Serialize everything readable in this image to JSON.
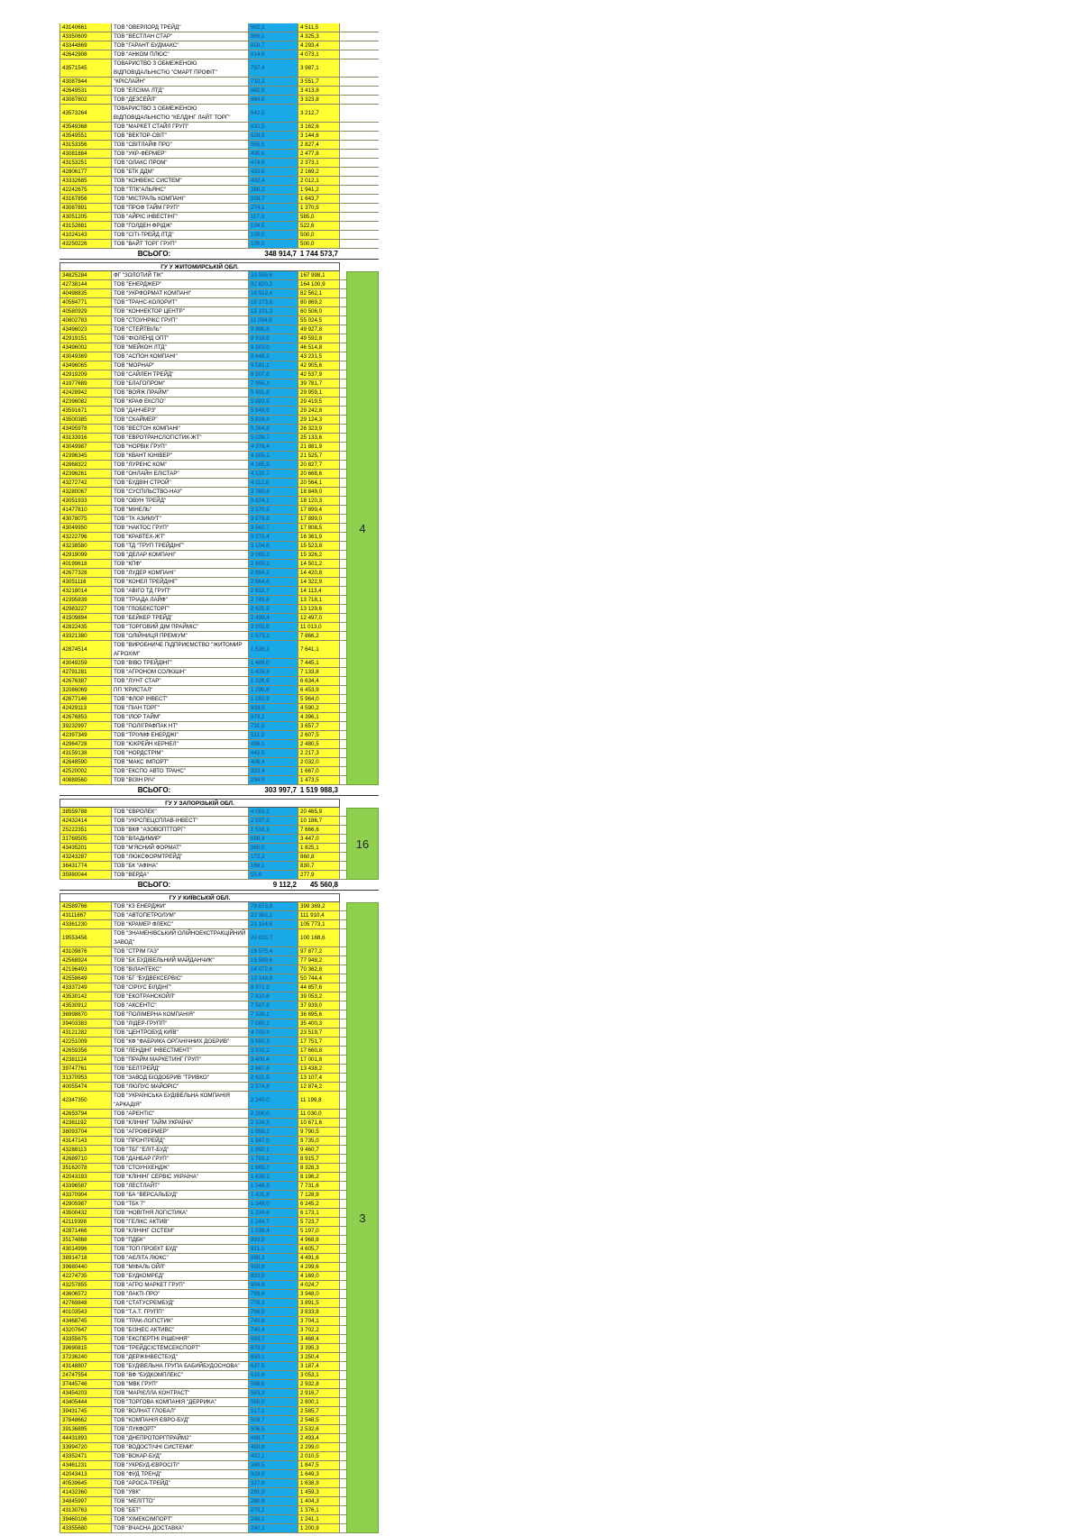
{
  "sections": [
    {
      "header": "",
      "badge": "",
      "total": {
        "label": "ВСЬОГО:",
        "v1": "348 914,7",
        "v2": "1 744 573,7"
      },
      "rows": [
        [
          "43140661",
          "ТОВ \"ОВЕРЛОРД ТРЕЙД\"",
          "902,3",
          "4 511,5"
        ],
        [
          "43350609",
          "ТОВ \"ВЕСТЛАН СТАР\"",
          "865,1",
          "4 325,3"
        ],
        [
          "43344869",
          "ТОВ \"ГАРАНТ БУДМАКС\"",
          "858,7",
          "4 293,4"
        ],
        [
          "42642908",
          "ТОВ \"АНКОМ ПЛЮС\"",
          "814,6",
          "4 073,1"
        ],
        [
          "43571545",
          "ТОВАРИСТВО З ОБМЕЖЕНОЮ ВІДПОВІДАЛЬНІСТЮ \"СМАРТ ПРОФІТ\"",
          "797,4",
          "3 987,1"
        ],
        [
          "43087844",
          "\"КРІСЛАЙН\"",
          "710,3",
          "3 551,7"
        ],
        [
          "42649531",
          "ТОВ \"ЕЛСІМА ЛТД\"",
          "682,8",
          "3 413,8"
        ],
        [
          "43087802",
          "ТОВ \"ДЕЗСЕЙЛ\"",
          "664,8",
          "3 323,8"
        ],
        [
          "43573264",
          "ТОВАРИСТВО З ОБМЕЖЕНОЮ ВІДПОВІДАЛЬНІСТЮ \"КЕЛДІНГ ЛАЙТ ТОРГ\"",
          "642,5",
          "3 212,7"
        ],
        [
          "43549368",
          "ТОВ \"МАРКЕТ СТАЙЛ ГРУП\"",
          "632,5",
          "3 162,6"
        ],
        [
          "43549551",
          "ТОВ \"ВЕКТОР-СВІТ\"",
          "628,9",
          "3 144,6"
        ],
        [
          "43153356",
          "ТОВ \"СВІТЛАЙФ ПРО\"",
          "565,5",
          "2 827,4"
        ],
        [
          "43081884",
          "ТОВ \"УКР-ФЕРМЕР\"",
          "495,6",
          "2 477,8"
        ],
        [
          "43153251",
          "ТОВ \"ОЛАКС ПРОМ\"",
          "474,6",
          "2 373,1"
        ],
        [
          "42806177",
          "ТОВ \"БТК ДДМ\"",
          "433,8",
          "2 169,2"
        ],
        [
          "43332685",
          "ТОВ \"КОНВЕКС СИСТЕМ\"",
          "402,4",
          "2 012,1"
        ],
        [
          "42242675",
          "ТОВ \"ТПК\"АЛЬЯНС\"",
          "388,2",
          "1 941,2"
        ],
        [
          "43167856",
          "ТОВ \"МІСТРАЛЬ КОМПАНІ\"",
          "328,7",
          "1 643,7"
        ],
        [
          "43087891",
          "ТОВ \"ПРОФ ТАЙМ ГРУП\"",
          "274,1",
          "1 370,5"
        ],
        [
          "43051205",
          "ТОВ \"АЙРІС ІНВЕСТІНГ\"",
          "117,0",
          "585,0"
        ],
        [
          "43152881",
          "ТОВ \"ГОЛДЕН ФРІДЖ\"",
          "104,5",
          "522,6"
        ],
        [
          "41024143",
          "ТОВ \"СІТІ-ТРЕЙД ЛТД\"",
          "100,0",
          "500,0"
        ],
        [
          "43250226",
          "ТОВ \"ВАЙТ ТОРГ ГРУП\"",
          "100,0",
          "500,0"
        ]
      ]
    },
    {
      "header": "ГУ У ЖИТОМИРСЬКІЙ ОБЛ.",
      "badge": "4",
      "total": {
        "label": "ВСЬОГО:",
        "v1": "303 997,7",
        "v2": "1 519 988,3"
      },
      "rows": [
        [
          "34825284",
          "ФГ \"ЗОЛОТИЙ ТІК\"",
          "33 599,6",
          "167 998,1"
        ],
        [
          "42738144",
          "ТОВ \"ЕНЕРДЖЕР\"",
          "32 820,2",
          "164 100,9"
        ],
        [
          "40498835",
          "ТОВ \"УКРФОРМАТ КОМПАНІ\"",
          "16 512,4",
          "82 562,1"
        ],
        [
          "40584771",
          "ТОВ \"ТРАНС-КОЛОРИТ\"",
          "16 173,8",
          "80 869,2"
        ],
        [
          "40580929",
          "ТОВ \"КОННЕКТОР ЦЕНТР\"",
          "12 101,2",
          "60 506,0"
        ],
        [
          "40802783",
          "ТОВ \"СТОУНРІКС ГРУП\"",
          "11 004,9",
          "55 024,5"
        ],
        [
          "43496023",
          "ТОВ \"СТЕЙТВІЛЬ\"",
          "9 985,6",
          "49 927,8"
        ],
        [
          "42919151",
          "ТОВ \"ФІОЛЕНД ОПТ\"",
          "9 918,6",
          "49 592,8"
        ],
        [
          "43496002",
          "ТОВ \"МЕЙКОН ЛТД\"",
          "9 303,0",
          "46 514,8"
        ],
        [
          "43049369",
          "ТОВ \"АСПОН КОМПАНІ\"",
          "8 646,2",
          "43 231,5"
        ],
        [
          "43496065",
          "ТОВ \"МОРНАР\"",
          "8 581,1",
          "42 905,6"
        ],
        [
          "42919209",
          "ТОВ \"САЙЛЕН ТРЕЙД\"",
          "8 507,6",
          "42 537,9"
        ],
        [
          "41977689",
          "ТОВ \"БЛАГОПРОМ\"",
          "7 956,3",
          "39 781,7"
        ],
        [
          "42428942",
          "ТОВ \"ВОЯЖ ПРАЙМ\"",
          "5 991,8",
          "29 959,1"
        ],
        [
          "42396082",
          "ТОВ \"КРАФ ЕКСПО\"",
          "5 883,9",
          "29 419,5"
        ],
        [
          "43591671",
          "ТОВ \"ДАНЧЕРЗ\"",
          "5 848,6",
          "29 242,8"
        ],
        [
          "43500385",
          "ТОВ \"СКАЙМЕР\"",
          "5 824,9",
          "29 124,3"
        ],
        [
          "43495978",
          "ТОВ \"ВЕСТОН КОМПАНІ\"",
          "5 264,8",
          "26 323,9"
        ],
        [
          "43133916",
          "ТОВ \"ЕВРОТРАНСЛОГІСТИК-ЖТ\"",
          "5 026,7",
          "25 133,6"
        ],
        [
          "43049987",
          "ТОВ \"НОРВІК ГРУП\"",
          "4 376,4",
          "21 881,9"
        ],
        [
          "42396345",
          "ТОВ \"КВАНТ ЮНІВЕР\"",
          "4 305,1",
          "21 525,7"
        ],
        [
          "42868322",
          "ТОВ \"ЛУРЕНС КОМ\"",
          "4 165,5",
          "20 827,7"
        ],
        [
          "42396261",
          "ТОВ \"ОНЛАЙН ЕЛІСТАР\"",
          "4 133,7",
          "20 668,6"
        ],
        [
          "43272742",
          "ТОВ \"БУДВІН СТРОЙ\"",
          "4 112,8",
          "20 564,1"
        ],
        [
          "43280067",
          "ТОВ \"СУСПІЛЬСТВО-НАУ\"",
          "3 769,8",
          "18 849,0"
        ],
        [
          "43051933",
          "ТОВ \"ОВУН ТРЕЙД\"",
          "3 624,1",
          "18 120,3"
        ],
        [
          "41477810",
          "ТОВ \"МІНЕЛЬ\"",
          "3 579,9",
          "17 899,4"
        ],
        [
          "43078075",
          "ТОВ \"ТК АЗИМУТ\"",
          "3 579,8",
          "17 899,0"
        ],
        [
          "43049950",
          "ТОВ \"НАКТОС ГРУП\"",
          "3 561,7",
          "17 808,5"
        ],
        [
          "43222796",
          "ТОВ \"КРАВТЕХ-ЖТ\"",
          "3 272,4",
          "16 361,9"
        ],
        [
          "43238580",
          "ТОВ \"ТД \"ТРУП ТРЕЙДІНГ\"",
          "3 104,6",
          "15 523,8"
        ],
        [
          "42919099",
          "ТОВ \"ДЕЛАР КОМПАНІ\"",
          "3 065,2",
          "15 326,2"
        ],
        [
          "40199618",
          "ТОВ \"КПФ\"",
          "2 900,2",
          "14 501,2"
        ],
        [
          "42677328",
          "ТОВ \"ЛУДЕР КОМПАНІ\"",
          "2 884,2",
          "14 420,8"
        ],
        [
          "43051116",
          "ТОВ \"КОНЕЛ ТРЕЙДІНГ\"",
          "2 864,6",
          "14 322,9"
        ],
        [
          "43218014",
          "ТОВ \"АВІГО ТД ГРУП\"",
          "2 822,7",
          "14 113,4"
        ],
        [
          "42395839",
          "ТОВ \"ТРІАДА ЛАЙФ\"",
          "2 743,6",
          "13 718,1"
        ],
        [
          "42983227",
          "ТОВ \"ГЛОБЕКСТОРГ\"",
          "2 625,9",
          "13 129,6"
        ],
        [
          "41509894",
          "ТОВ \"БЕЙКЕР ТРЕЙД\"",
          "2 499,4",
          "12 497,0"
        ],
        [
          "42822435",
          "ТОВ \"ТОРГОВИЙ ДІМ ПРАЙМІС\"",
          "2 202,6",
          "11 013,0"
        ],
        [
          "43321380",
          "ТОВ \"ОЛІЙНИЦЯ ПРЕМІУМ\"",
          "1 573,2",
          "7 866,2"
        ],
        [
          "42874514",
          "ТОВ \"ВИРОБНИЧЕ ПІДПРИЄМСТВО \"ЖИТОМИР АГРОХІМ\"",
          "1 528,2",
          "7 641,1"
        ],
        [
          "43049259",
          "ТОВ \"ВІВО ТРЕЙДІНГ\"",
          "1 489,0",
          "7 445,1"
        ],
        [
          "42791281",
          "ТОВ \"АГРОНОМ СОЛЮШН\"",
          "1 426,8",
          "7 133,8"
        ],
        [
          "42676387",
          "ТОВ \"ЛУНТ СТАР\"",
          "1 326,9",
          "6 634,4"
        ],
        [
          "32086069",
          "ПП \"КРИСТАЛ\"",
          "1 290,8",
          "6 453,9"
        ],
        [
          "42677146",
          "ТОВ \"ФЛОР ІНВЕСТ\"",
          "1 192,8",
          "5 964,0"
        ],
        [
          "42429113",
          "ТОВ \"ПІАН ТОРГ\"",
          "918,0",
          "4 590,2"
        ],
        [
          "42676853",
          "ТОВ \"ІЛОР ТАЙМ\"",
          "879,2",
          "4 396,1"
        ],
        [
          "39232997",
          "ТОВ \"ПОЛІГРАФПАК НТ\"",
          "731,5",
          "3 657,7"
        ],
        [
          "42397349",
          "ТОВ \"ТРІУМФ ЕНЕРДЖІ\"",
          "521,5",
          "2 607,5"
        ],
        [
          "42964728",
          "ТОВ \"ЮКРЕЙН КЕРНЕЛ\"",
          "496,1",
          "2 480,5"
        ],
        [
          "43159138",
          "ТОВ \"НОРДСТРІМ\"",
          "443,5",
          "2 217,3"
        ],
        [
          "42648590",
          "ТОВ \"МАКС ІМПОРТ\"",
          "406,4",
          "2 032,0"
        ],
        [
          "42520002",
          "ТОВ \"ЕКСПО АВТО ТРАНС\"",
          "333,4",
          "1 667,0"
        ],
        [
          "40889560",
          "ТОВ \"ВІЗІН РІЧ\"",
          "294,9",
          "1 473,5"
        ]
      ]
    },
    {
      "header": "ГУ У ЗАПОРІЗЬКІЙ ОБЛ.",
      "badge": "16",
      "total": {
        "label": "ВСЬОГО:",
        "v1": "9 112,2",
        "v2": "45 560,8"
      },
      "rows": [
        [
          "38559788",
          "ТОВ \"ЄВРОЛЕК\"",
          "4 093,2",
          "20 465,9"
        ],
        [
          "42432414",
          "ТОВ \"УКРСПЕЦСПЛАВ-ІНВЕСТ\"",
          "2 037,3",
          "10 186,7"
        ],
        [
          "25222351",
          "ТОВ \"ВКФ \"АЗОВОПТТОРГ\"",
          "1 533,2",
          "7 666,6"
        ],
        [
          "31769505",
          "ТОВ \"ВЛАДИМИР\"",
          "689,4",
          "3 447,0"
        ],
        [
          "43435201",
          "ТОВ \"М'ЯСНИЙ ФОРМАТ\"",
          "365,0",
          "1 825,1"
        ],
        [
          "43243287",
          "ТОВ \"ЛЮКСФОРМТРЕЙД\"",
          "172,2",
          "860,8"
        ],
        [
          "36431774",
          "ТОВ \"БК \"АФІНА\"",
          "166,1",
          "830,7"
        ],
        [
          "35980044",
          "ТОВ \"ВЕРДА\"",
          "55,8",
          "277,9"
        ]
      ]
    },
    {
      "header": "ГУ У КИЇВСЬКІЙ ОБЛ.",
      "badge": "3",
      "total": null,
      "rows": [
        [
          "42589766",
          "ТОВ \"КЗ ЕНЕРДЖИ\"",
          "79 873,8",
          "399 369,2"
        ],
        [
          "43111867",
          "ТОВ \"АВТОПЕТРОЛУМ\"",
          "22 382,1",
          "111 910,4"
        ],
        [
          "43361230",
          "ТОВ \"КРАМЕР ФЛЕКС\"",
          "21 154,6",
          "105 773,1"
        ],
        [
          "19553456",
          "ТОВ \"ЗНАМЕНІВСЬКИЙ ОЛІЙНОЕКСТРАКЦІЙНИЙ ЗАВОД\"",
          "20 033,7",
          "100 168,6"
        ],
        [
          "43109876",
          "ТОВ \"СТРІМ ГАЗ\"",
          "19 575,4",
          "97 877,2"
        ],
        [
          "42568924",
          "ТОВ \"БК БУДІВЕЛЬНИЙ МАЙДАНЧИК\"",
          "15 589,6",
          "77 948,2"
        ],
        [
          "42196493",
          "ТОВ \"ВІЛАНТЕКС\"",
          "14 072,6",
          "70 362,8"
        ],
        [
          "42558649",
          "ТОВ \"БГ \"БУДВЕКСЕРВІС\"",
          "10 148,8",
          "50 744,4"
        ],
        [
          "43337249",
          "ТОВ \"СІРІУС БІЛДІНГ\"",
          "8 971,5",
          "44 857,6"
        ],
        [
          "43530142",
          "ТОВ \"ЕКОТРАНСКОЙЛ\"",
          "7 810,6",
          "39 053,2"
        ],
        [
          "43530912",
          "ТОВ \"АКСЕНТС\"",
          "7 587,8",
          "37 939,0"
        ],
        [
          "36998670",
          "ТОВ \"ПОЛІМЕРНА КОМПАНІЯ\"",
          "7 339,1",
          "36 695,6"
        ],
        [
          "39403383",
          "ТОВ \"ЛІДЕР-ГРУПП\"",
          "7 080,1",
          "35 400,3"
        ],
        [
          "43121282",
          "ТОВ \"ЦЕНТРОБУД КИЇВ\"",
          "4 703,9",
          "23 519,7"
        ],
        [
          "42251009",
          "ТОВ \"КФ \"ФАБРИКА ОРГАНІЧНИХ ДОБРИВ\"",
          "3 550,3",
          "17 751,7"
        ],
        [
          "42659356",
          "ТОВ \"ЛЕНДІНГ ІНВЕСТМЕНТ\"",
          "3 532,2",
          "17 660,8"
        ],
        [
          "42381124",
          "ТОВ \"ПРАЙМ МАРКЕТИНГ ГРУП\"",
          "3 400,4",
          "17 001,8"
        ],
        [
          "39747761",
          "ТОВ \"БЕЛТРЕЙД\"",
          "2 687,6",
          "13 438,2"
        ],
        [
          "31370953",
          "ТОВ \"ЗАВОД БІОДОБРИВ \"ТРИВКО\"",
          "2 621,5",
          "13 107,4"
        ],
        [
          "40055474",
          "ТОВ \"ЛЮПУС МАЙОРІС\"",
          "2 574,8",
          "12 874,2"
        ],
        [
          "42347350",
          "ТОВ \"УКРАЇНСЬКА БУДІВЕЛЬНА КОМПАНІЯ \"АРКАДІЯ\"",
          "2 240,0",
          "11 199,8"
        ],
        [
          "42653794",
          "ТОВ \"АРЕНТІС\"",
          "2 206,0",
          "11 030,0"
        ],
        [
          "42381192",
          "ТОВ \"КЛІНІНГ ТАЙМ УКРАЇНА\"",
          "2 134,3",
          "10 671,6"
        ],
        [
          "38093704",
          "ТОВ \"АГРОФЕРМЕР\"",
          "1 958,1",
          "9 790,5"
        ],
        [
          "43147143",
          "ТОВ \"ПРОНТРЕЙД\"",
          "1 947,0",
          "9 735,0"
        ],
        [
          "43288113",
          "ТОВ \"ТБГ \"ЕЛІТ-БУД\"",
          "1 892,1",
          "9 460,7"
        ],
        [
          "42689710",
          "ТОВ \"ДАНБАР ГРУП\"",
          "1 783,1",
          "8 915,7"
        ],
        [
          "35162078",
          "ТОВ \"СТОУНХЕНДЖ\"",
          "1 665,7",
          "8 328,3"
        ],
        [
          "42043193",
          "ТОВ \"КЛІНІНГ СЕРВІС УКРАЇНА\"",
          "1 639,2",
          "8 196,2"
        ],
        [
          "43396587",
          "ТОВ \"ЛЕСТЛАЙТ\"",
          "1 546,3",
          "7 731,6"
        ],
        [
          "43370904",
          "ТОВ \"БА \"ВЕРСАЛЬБУД\"",
          "1 425,8",
          "7 128,9"
        ],
        [
          "42905987",
          "ТОВ \"ТБК 7\"",
          "1 249,0",
          "6 245,2"
        ],
        [
          "43500432",
          "ТОВ \"НОВІТНЯ ЛОГІСТИКА\"",
          "1 234,6",
          "6 173,1"
        ],
        [
          "42119398",
          "ТОВ \"ГЕЛІКС АКТИВ\"",
          "1 144,7",
          "5 723,7"
        ],
        [
          "42871466",
          "ТОВ \"КЛІНІНГ СІСТЕМ\"",
          "1 039,4",
          "5 197,0"
        ],
        [
          "35174868",
          "ТОВ \"ПДБК\"",
          "993,8",
          "4 968,8"
        ],
        [
          "43014996",
          "ТОВ \"ТОП ПРОЕКТ БУД\"",
          "921,1",
          "4 605,7"
        ],
        [
          "38914718",
          "ТОВ \"АЄЛІТА ЛЮКС\"",
          "898,3",
          "4 491,6"
        ],
        [
          "39680440",
          "ТОВ \"МІФАЛЬ ОЙЛ\"",
          "859,9",
          "4 299,6"
        ],
        [
          "42274735",
          "ТОВ \"БУДКОМРЕД\"",
          "833,8",
          "4 169,0"
        ],
        [
          "43257855",
          "ТОВ \"АГРО МАРКЕТ ГРУП\"",
          "804,9",
          "4 024,7"
        ],
        [
          "43606572",
          "ТОВ \"ЛАКТІ-ПРО\"",
          "789,6",
          "3 948,0"
        ],
        [
          "42769848",
          "ТОВ \"СТАТУСРЕМБУД\"",
          "778,3",
          "3 891,5"
        ],
        [
          "40103543",
          "ТОВ \"Т.А.Т. ГРУПП\"",
          "766,8",
          "3 833,8"
        ],
        [
          "43468745",
          "ТОВ \"ТРАК-ЛОГІСТИК\"",
          "740,8",
          "3 704,1"
        ],
        [
          "43207647",
          "ТОВ \"БІЗНЕС АКТИВС\"",
          "740,4",
          "3 702,2"
        ],
        [
          "43355675",
          "ТОВ \"ЕКСПЕРТНІ РІШЕННЯ\"",
          "693,7",
          "3 468,4"
        ],
        [
          "39690815",
          "ТОВ \"ТРЕЙДСІСТЕМСЕКСПОРТ\"",
          "679,0",
          "3 395,3"
        ],
        [
          "37236240",
          "ТОВ \"ДЕРЖІНВЕСТБУД\"",
          "650,1",
          "3 250,4"
        ],
        [
          "43148807",
          "ТОВ \"БУДІВЕЛЬНА ГРУПА БАБИЙБУДОСНОВА\"",
          "637,5",
          "3 187,4"
        ],
        [
          "24747554",
          "ТОВ \"ВФ \"БУДКОМПЛЕКС\"",
          "610,6",
          "3 053,1"
        ],
        [
          "37445746",
          "ТОВ \"МВК ГРУП\"",
          "586,6",
          "2 932,8"
        ],
        [
          "43454203",
          "ТОВ \"МАРІЄЛЛА КОНТРАСТ\"",
          "583,3",
          "2 916,7"
        ],
        [
          "43405444",
          "ТОВ \"ТОРГОВА КОМПАНІЯ \"ДЕРРИКА\"",
          "560,0",
          "2 800,1"
        ],
        [
          "39431745",
          "ТОВ \"ВОЛНАТ ГЛОБАЛ\"",
          "517,1",
          "2 585,7"
        ],
        [
          "37848662",
          "ТОВ \"КОМПАНІЯ ЄВРО-БУД\"",
          "509,7",
          "2 548,5"
        ],
        [
          "39136895",
          "ТОВ \"ЛУКФОРТ\"",
          "506,5",
          "2 532,6"
        ],
        [
          "44431893",
          "ТОВ \"ДНЕПРОТОРГПРАЙМ2\"",
          "498,7",
          "2 493,4"
        ],
        [
          "33994720",
          "ТОВ \"ВОДОСТІЧНІ СИСТЕМИ\"",
          "459,8",
          "2 299,0"
        ],
        [
          "43352471",
          "ТОВ \"ВОКАР-БУД\"",
          "402,1",
          "2 010,5"
        ],
        [
          "43461231",
          "ТОВ \"УКРБУД-ЄВРОСІТІ\"",
          "369,5",
          "1 847,5"
        ],
        [
          "42043413",
          "ТОВ \"ФУД ТРЕНД\"",
          "329,9",
          "1 649,3"
        ],
        [
          "40539645",
          "ТОВ \"АРОСА-ТРЕЙД\"",
          "327,8",
          "1 638,9"
        ],
        [
          "41432360",
          "ТОВ \"УВК\"",
          "291,9",
          "1 459,3"
        ],
        [
          "34845997",
          "ТОВ \"МЕЛІТТО\"",
          "280,9",
          "1 404,3"
        ],
        [
          "43130763",
          "ТОВ \"ББТ\"",
          "275,2",
          "1 376,1"
        ],
        [
          "39460106",
          "ТОВ \"ХІМЕКСІМПОРТ\"",
          "248,2",
          "1 241,1"
        ],
        [
          "43355680",
          "ТОВ \"ВЧАСНА ДОСТАВКА\"",
          "240,2",
          "1 200,9"
        ]
      ]
    }
  ]
}
